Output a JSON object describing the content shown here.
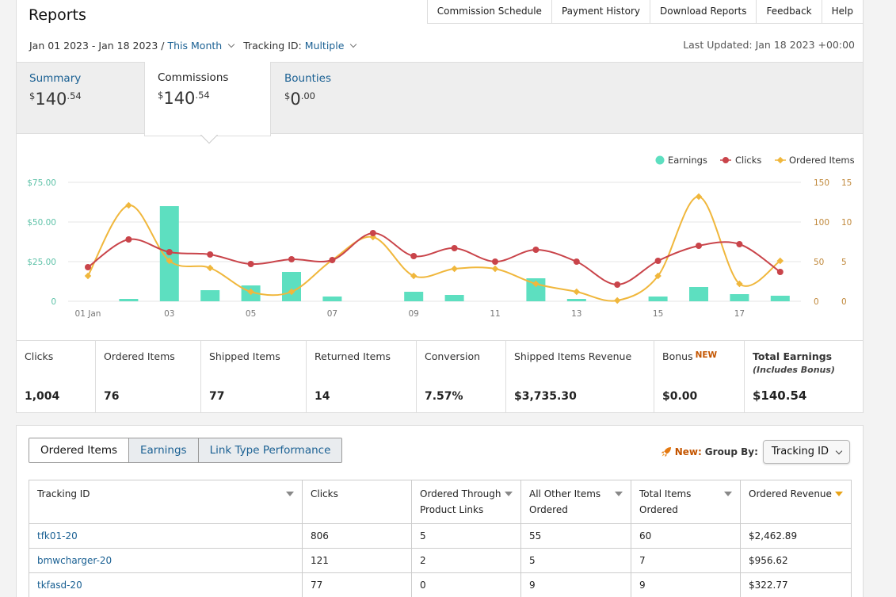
{
  "header": {
    "title": "Reports",
    "nav": [
      "Commission Schedule",
      "Payment History",
      "Download Reports",
      "Feedback",
      "Help"
    ],
    "date_range": "Jan 01 2023 - Jan 18 2023 /",
    "date_preset": "This Month",
    "tracking_label": "Tracking ID:",
    "tracking_value": "Multiple",
    "last_updated": "Last Updated: Jan 18 2023 +00:00"
  },
  "summary_tabs": [
    {
      "label": "Summary",
      "currency": "$",
      "whole": "140",
      "cents": ".54"
    },
    {
      "label": "Commissions",
      "currency": "$",
      "whole": "140",
      "cents": ".54"
    },
    {
      "label": "Bounties",
      "currency": "$",
      "whole": "0",
      "cents": ".00"
    }
  ],
  "chart_data": {
    "type": "line",
    "legend": [
      "Earnings",
      "Clicks",
      "Ordered Items"
    ],
    "legend_position": "top-right",
    "colors": {
      "earnings": "#5ddfc0",
      "clicks": "#c9444a",
      "ordered": "#f0b73c",
      "grid": "#e5e5e5",
      "left_axis": "#5ec2a8",
      "right_axis": "#c0883a"
    },
    "x_ticks": [
      "01 Jan",
      "03",
      "05",
      "07",
      "09",
      "11",
      "13",
      "15",
      "17"
    ],
    "y_left_ticks": [
      "0",
      "$25.00",
      "$50.00",
      "$75.00"
    ],
    "y_left_range": [
      0,
      75
    ],
    "y_clicks_ticks": [
      "0",
      "50",
      "100",
      "150"
    ],
    "y_clicks_range": [
      0,
      150
    ],
    "y_ordered_ticks": [
      "0",
      "5",
      "10",
      "15"
    ],
    "y_ordered_range": [
      0,
      15
    ],
    "x": [
      1,
      2,
      3,
      4,
      5,
      6,
      7,
      8,
      9,
      10,
      11,
      12,
      13,
      14,
      15,
      16,
      17,
      18
    ],
    "series": [
      {
        "name": "Earnings",
        "type": "bar",
        "values": [
          0,
          1.5,
          60,
          7,
          10,
          18.5,
          3,
          0,
          6,
          4,
          0,
          14.5,
          1.5,
          0,
          3,
          9,
          4.5,
          3.5
        ]
      },
      {
        "name": "Clicks",
        "type": "line",
        "values": [
          43,
          78,
          62,
          59,
          47,
          53,
          52,
          86,
          57,
          67,
          50,
          65,
          50,
          21,
          51,
          70,
          72,
          37
        ]
      },
      {
        "name": "Ordered Items",
        "type": "line",
        "values": [
          3.2,
          12.1,
          5.1,
          4.2,
          1.2,
          1.2,
          5.2,
          8.1,
          3.2,
          4.1,
          4.1,
          2.2,
          1.2,
          0.1,
          3.2,
          13.2,
          2.2,
          5.1
        ]
      }
    ]
  },
  "metrics": [
    {
      "label": "Clicks",
      "value": "1,004"
    },
    {
      "label": "Ordered Items",
      "value": "76"
    },
    {
      "label": "Shipped Items",
      "value": "77"
    },
    {
      "label": "Returned Items",
      "value": "14"
    },
    {
      "label": "Conversion",
      "value": "7.57%"
    },
    {
      "label": "Shipped Items Revenue",
      "value": "$3,735.30"
    },
    {
      "label": "Bonus",
      "badge": "NEW",
      "value": "$0.00"
    },
    {
      "label": "Total Earnings",
      "sublabel": "(Includes Bonus)",
      "value": "$140.54"
    }
  ],
  "report_tabs": [
    "Ordered Items",
    "Earnings",
    "Link Type Performance"
  ],
  "group_by": {
    "new_label": "New:",
    "label": "Group By:",
    "selected": "Tracking ID"
  },
  "table": {
    "headers": [
      "Tracking ID",
      "Clicks",
      "Ordered Through Product Links",
      "All Other Items Ordered",
      "Total Items Ordered",
      "Ordered Revenue"
    ],
    "rows": [
      [
        "tfk01-20",
        "806",
        "5",
        "55",
        "60",
        "$2,462.89"
      ],
      [
        "bmwcharger-20",
        "121",
        "2",
        "5",
        "7",
        "$956.62"
      ],
      [
        "tkfasd-20",
        "77",
        "0",
        "9",
        "9",
        "$322.77"
      ]
    ]
  }
}
